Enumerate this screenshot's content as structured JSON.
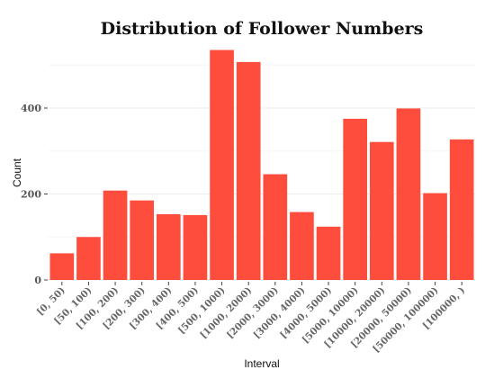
{
  "chart_data": {
    "type": "bar",
    "title": "Distribution of Follower Numbers",
    "xlabel": "Interval",
    "ylabel": "Count",
    "categories": [
      "[0, 50)",
      "[50, 100)",
      "[100, 200)",
      "[200, 300)",
      "[300, 400)",
      "[400, 500)",
      "[500, 1000)",
      "[1000, 2000)",
      "[2000, 3000)",
      "[3000, 4000)",
      "[4000, 5000)",
      "[5000, 10000)",
      "[10000, 20000)",
      "[20000, 50000)",
      "[50000, 100000)",
      "[100000, )"
    ],
    "values": [
      62,
      100,
      208,
      185,
      153,
      151,
      535,
      507,
      246,
      158,
      124,
      375,
      321,
      399,
      202,
      327
    ],
    "yticks": [
      0,
      200,
      400
    ],
    "ylim": [
      0,
      560
    ],
    "grid": true,
    "legend": "none",
    "bar_color": "#ff4d3d"
  }
}
